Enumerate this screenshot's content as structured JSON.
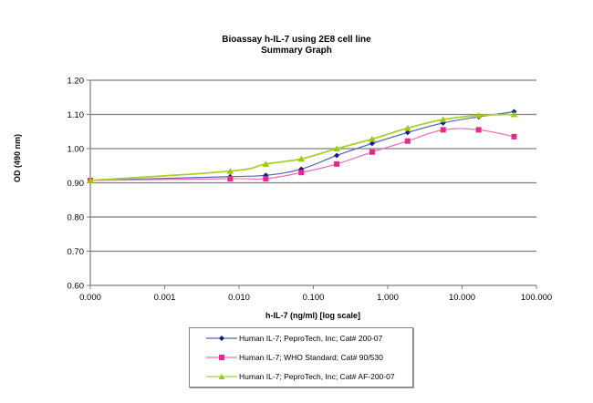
{
  "chart_data": {
    "type": "line",
    "title": "Bioassay h-IL-7 using 2E8 cell line",
    "subtitle": "Summary  Graph",
    "xlabel": "h-IL-7 (ng/ml) [log scale]",
    "ylabel": "OD (490 nm)",
    "xscale": "log",
    "x_tick_labels": [
      "0.000",
      "0.001",
      "0.010",
      "0.100",
      "1.000",
      "10.000",
      "100.000"
    ],
    "y_tick_labels": [
      "0.60",
      "0.70",
      "0.80",
      "0.90",
      "1.00",
      "1.10",
      "1.20"
    ],
    "ylim": [
      0.6,
      1.2
    ],
    "xlim": [
      0.0001,
      100
    ],
    "grid": "horizontal",
    "legend_position": "bottom",
    "x": [
      0.0001,
      0.0076,
      0.0229,
      0.0686,
      0.206,
      0.617,
      1.85,
      5.56,
      16.67,
      50
    ],
    "series": [
      {
        "name": "Human IL-7; PeproTech, Inc; Cat# 200-07",
        "color": "#1a1a80",
        "line_color": "#5566b8",
        "marker": "diamond",
        "values": [
          0.907,
          0.918,
          0.922,
          0.94,
          0.98,
          1.015,
          1.047,
          1.075,
          1.093,
          1.108
        ]
      },
      {
        "name": "Human IL-7; WHO Standard; Cat# 90/530",
        "color": "#e8288c",
        "line_color": "#f070b4",
        "marker": "square",
        "values": [
          0.907,
          0.912,
          0.912,
          0.93,
          0.955,
          0.99,
          1.022,
          1.055,
          1.055,
          1.035
        ]
      },
      {
        "name": "Human IL-7; PeproTech, Inc; Cat# AF-200-07",
        "color": "#99cc00",
        "line_color": "#a8d030",
        "marker": "triangle",
        "values": [
          0.907,
          0.934,
          0.955,
          0.97,
          1.0,
          1.028,
          1.06,
          1.085,
          1.097,
          1.1
        ]
      }
    ]
  },
  "legend": {
    "items": [
      "Human IL-7; PeproTech, Inc; Cat# 200-07",
      "Human IL-7; WHO Standard; Cat# 90/530",
      "Human IL-7; PeproTech, Inc; Cat# AF-200-07"
    ]
  }
}
